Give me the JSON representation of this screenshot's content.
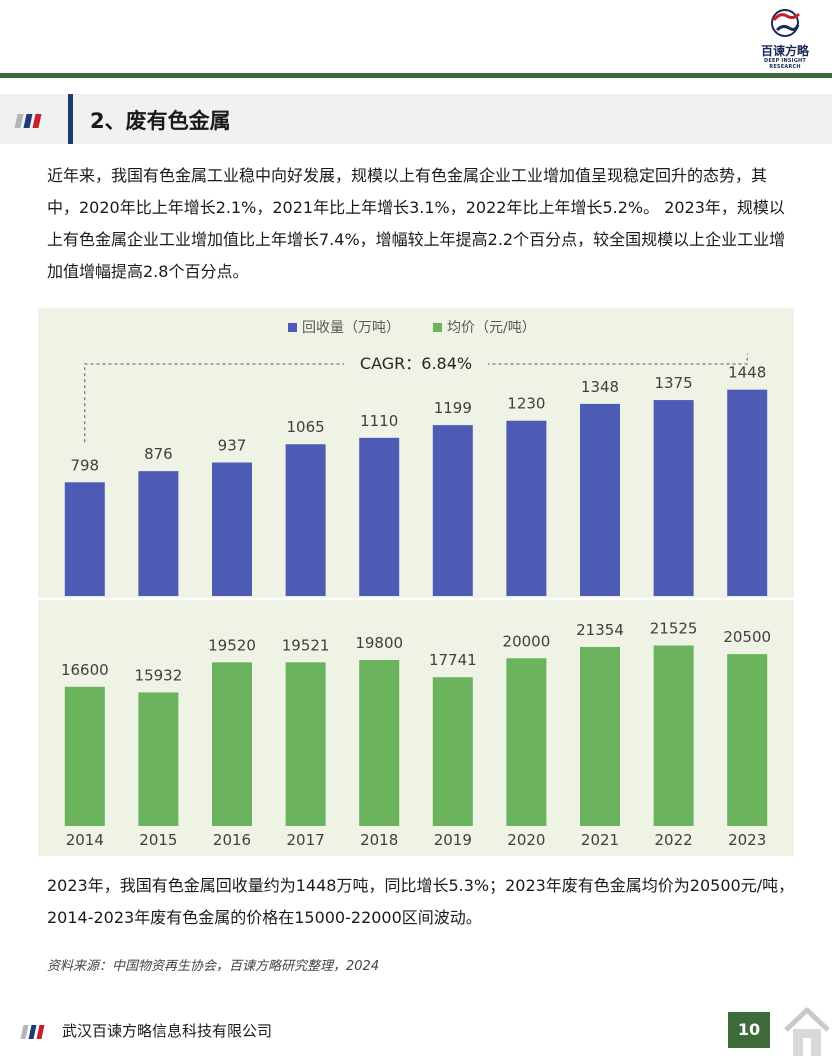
{
  "brand": {
    "name": "百谏方略",
    "subtitle": "DEEP INSIGHT RESEARCH"
  },
  "section": {
    "title": "2、废有色金属"
  },
  "paragraph_intro": "近年来，我国有色金属工业稳中向好发展，规模以上有色金属企业工业增加值呈现稳定回升的态势，其中，2020年比上年增长2.1%，2021年比上年增长3.1%，2022年比上年增长5.2%。 2023年，规模以上有色金属企业工业增加值比上年增长7.4%，增幅较上年提高2.2个百分点，较全国规模以上企业工业增加值增幅提高2.8个百分点。",
  "paragraph_summary": "2023年，我国有色金属回收量约为1448万吨，同比增长5.3%；2023年废有色金属均价为20500元/吨，2014-2023年废有色金属的价格在15000-22000区间波动。",
  "source_note": "资料来源：中国物资再生协会，百谏方略研究整理，2024",
  "chart_data": {
    "type": "bar",
    "categories": [
      "2014",
      "2015",
      "2016",
      "2017",
      "2018",
      "2019",
      "2020",
      "2021",
      "2022",
      "2023"
    ],
    "series": [
      {
        "name": "回收量（万吨）",
        "color": "#4e5bb5",
        "values": [
          798,
          876,
          937,
          1065,
          1110,
          1199,
          1230,
          1348,
          1375,
          1448
        ],
        "ylim": [
          0,
          1600
        ]
      },
      {
        "name": "均价（元/吨）",
        "color": "#6bb35c",
        "values": [
          16600,
          15932,
          19520,
          19521,
          19800,
          17741,
          20000,
          21354,
          21525,
          20500
        ],
        "ylim": [
          0,
          26000
        ]
      }
    ],
    "annotation": "CAGR：6.84%",
    "legend": "top-center",
    "background": "#eef3e6",
    "grid": false
  },
  "footer": {
    "company": "武汉百谏方略信息科技有限公司",
    "page": "10"
  },
  "colors": {
    "accent_green": "#3e6b3a",
    "title_bar": "#1f3b73",
    "flag_gray": "#b5b5b5",
    "flag_navy": "#1f3b73",
    "flag_red": "#c8202a"
  }
}
